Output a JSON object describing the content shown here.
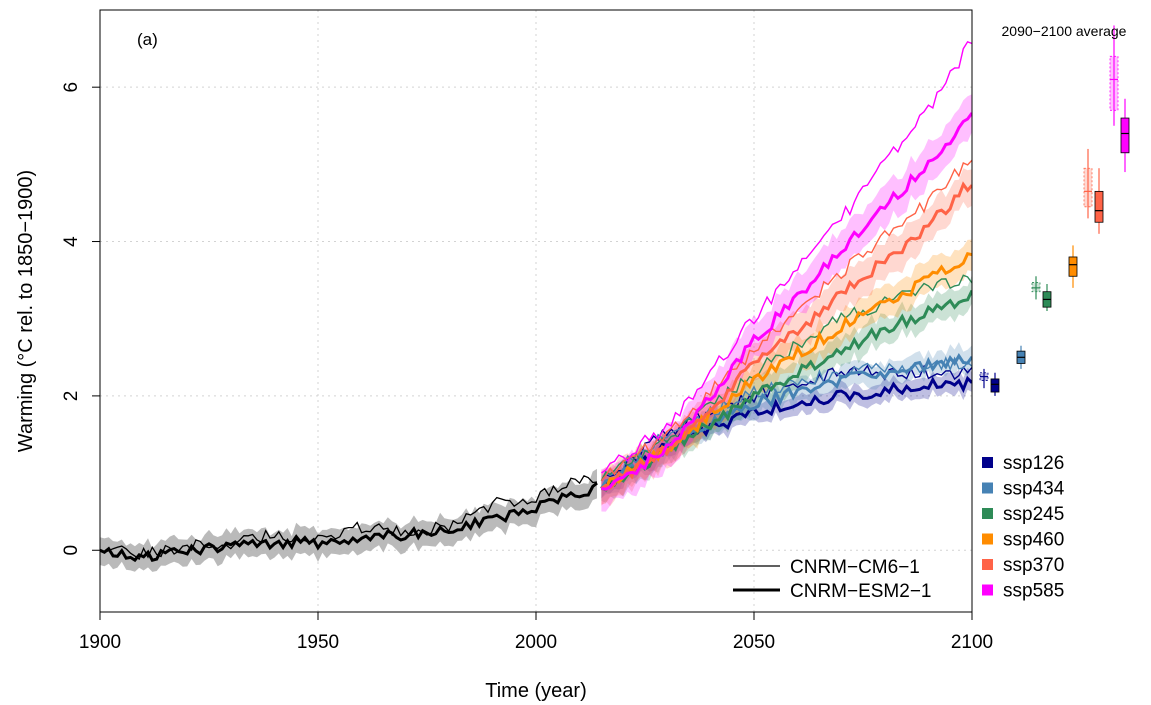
{
  "chart_data": {
    "type": "line",
    "panel_label": "(a)",
    "xlabel": "Time (year)",
    "ylabel": "Warming (°C rel. to 1850−1900)",
    "xlim": [
      1900,
      2100
    ],
    "ylim": [
      -0.8,
      7.0
    ],
    "x_ticks": [
      1900,
      1950,
      2000,
      2050,
      2100
    ],
    "y_ticks": [
      0,
      2,
      4,
      6
    ],
    "grid": true,
    "historical_color": "#000000",
    "historical_band_color": "#b3b3b3",
    "model_legend": [
      {
        "label": "CNRM−CM6−1",
        "style": "thin"
      },
      {
        "label": "CNRM−ESM2−1",
        "style": "thick"
      }
    ],
    "boxplot_title": "2090−2100 average",
    "series": [
      {
        "name": "ssp126",
        "color": "#00008b",
        "cm6": {
          "x": [
            2015,
            2030,
            2050,
            2070,
            2090,
            2100
          ],
          "y": [
            0.9,
            1.55,
            2.0,
            2.3,
            2.3,
            2.3
          ]
        },
        "esm": {
          "x": [
            2015,
            2030,
            2050,
            2070,
            2090,
            2100
          ],
          "y": [
            0.8,
            1.35,
            1.8,
            2.0,
            2.15,
            2.15
          ]
        },
        "box_cm6": {
          "min": 2.1,
          "q1": 2.2,
          "median": 2.25,
          "q3": 2.3,
          "max": 2.35
        },
        "box_esm": {
          "min": 2.0,
          "q1": 2.05,
          "median": 2.15,
          "q3": 2.22,
          "max": 2.3
        }
      },
      {
        "name": "ssp434",
        "color": "#4682b4",
        "cm6": {
          "x": [
            2015,
            2030,
            2050,
            2070,
            2090,
            2100
          ],
          "y": [
            0.9,
            1.5,
            2.05,
            2.3,
            2.4,
            2.45
          ]
        },
        "esm": {
          "x": [
            2015,
            2030,
            2050,
            2070,
            2090,
            2100
          ],
          "y": [
            0.8,
            1.35,
            1.9,
            2.2,
            2.4,
            2.5
          ]
        },
        "box_esm": {
          "min": 2.35,
          "q1": 2.42,
          "median": 2.5,
          "q3": 2.58,
          "max": 2.65
        }
      },
      {
        "name": "ssp245",
        "color": "#2e8b57",
        "cm6": {
          "x": [
            2015,
            2030,
            2050,
            2070,
            2090,
            2100
          ],
          "y": [
            0.9,
            1.4,
            2.3,
            3.0,
            3.4,
            3.5
          ]
        },
        "esm": {
          "x": [
            2015,
            2030,
            2050,
            2070,
            2090,
            2100
          ],
          "y": [
            0.8,
            1.3,
            2.0,
            2.6,
            3.1,
            3.3
          ]
        },
        "box_cm6": {
          "min": 3.25,
          "q1": 3.35,
          "median": 3.4,
          "q3": 3.47,
          "max": 3.55
        },
        "box_esm": {
          "min": 3.1,
          "q1": 3.15,
          "median": 3.25,
          "q3": 3.35,
          "max": 3.45
        }
      },
      {
        "name": "ssp460",
        "color": "#ff8c00",
        "esm": {
          "x": [
            2015,
            2030,
            2050,
            2070,
            2090,
            2100
          ],
          "y": [
            0.8,
            1.3,
            2.2,
            2.9,
            3.5,
            3.85
          ]
        },
        "box_esm": {
          "min": 3.4,
          "q1": 3.55,
          "median": 3.7,
          "q3": 3.8,
          "max": 3.95
        }
      },
      {
        "name": "ssp370",
        "color": "#ff6347",
        "cm6": {
          "x": [
            2015,
            2030,
            2050,
            2070,
            2090,
            2100
          ],
          "y": [
            0.9,
            1.5,
            2.6,
            3.6,
            4.5,
            5.1
          ]
        },
        "esm": {
          "x": [
            2015,
            2030,
            2050,
            2070,
            2090,
            2100
          ],
          "y": [
            0.8,
            1.3,
            2.4,
            3.3,
            4.2,
            4.8
          ]
        },
        "box_cm6": {
          "min": 4.3,
          "q1": 4.45,
          "median": 4.65,
          "q3": 4.95,
          "max": 5.2
        },
        "box_esm": {
          "min": 4.1,
          "q1": 4.25,
          "median": 4.4,
          "q3": 4.65,
          "max": 4.95
        }
      },
      {
        "name": "ssp585",
        "color": "#ff00ff",
        "cm6": {
          "x": [
            2015,
            2030,
            2050,
            2070,
            2090,
            2100
          ],
          "y": [
            1.0,
            1.6,
            3.0,
            4.3,
            5.7,
            6.6
          ]
        },
        "esm": {
          "x": [
            2015,
            2030,
            2050,
            2070,
            2090,
            2100
          ],
          "y": [
            0.8,
            1.3,
            2.7,
            3.9,
            5.0,
            5.65
          ]
        },
        "box_cm6": {
          "min": 5.5,
          "q1": 5.7,
          "median": 6.1,
          "q3": 6.4,
          "max": 6.8
        },
        "box_esm": {
          "min": 4.9,
          "q1": 5.15,
          "median": 5.4,
          "q3": 5.6,
          "max": 5.85
        }
      }
    ],
    "historical": {
      "cm6": {
        "x": [
          1900,
          1910,
          1920,
          1930,
          1940,
          1950,
          1960,
          1970,
          1980,
          1990,
          2000,
          2010,
          2014
        ],
        "y": [
          0.0,
          -0.05,
          0.05,
          0.1,
          0.2,
          0.15,
          0.3,
          0.25,
          0.3,
          0.6,
          0.7,
          0.9,
          0.95
        ]
      },
      "esm": {
        "x": [
          1900,
          1910,
          1920,
          1930,
          1940,
          1950,
          1960,
          1970,
          1980,
          1990,
          2000,
          2010,
          2014
        ],
        "y": [
          0.0,
          -0.1,
          0.0,
          0.05,
          0.1,
          0.1,
          0.15,
          0.2,
          0.25,
          0.4,
          0.55,
          0.75,
          0.8
        ]
      }
    }
  }
}
